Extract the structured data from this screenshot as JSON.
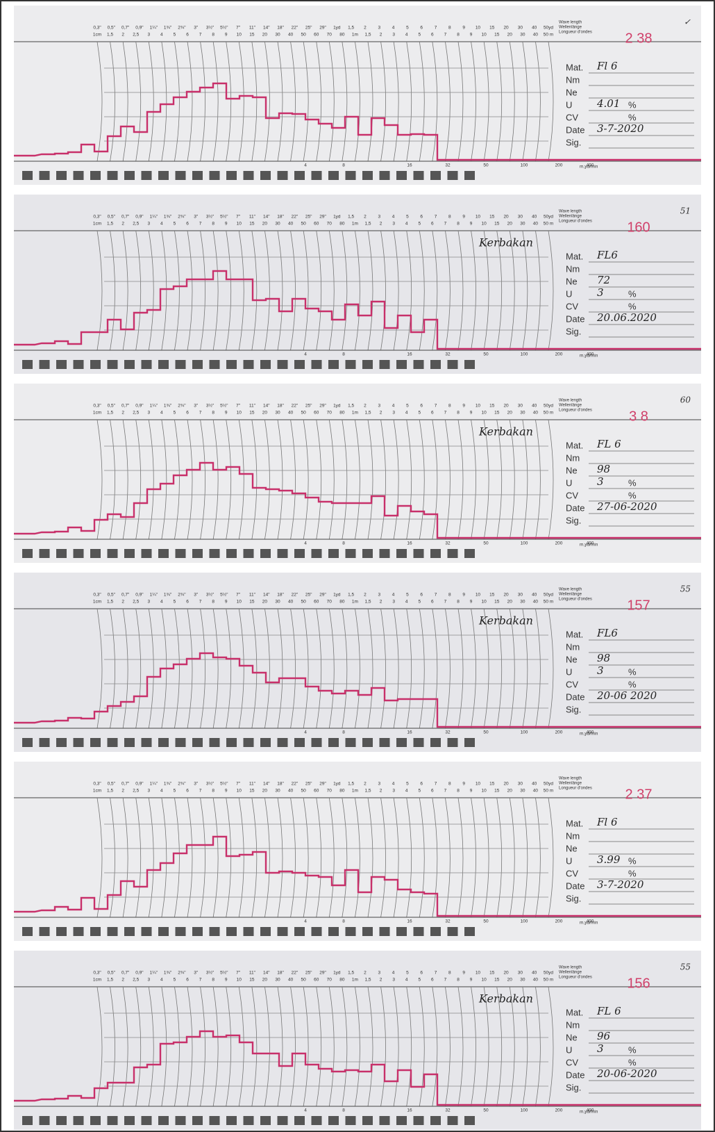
{
  "scale": {
    "row1": [
      "0,3\"",
      "0,5\"",
      "0,7\"",
      "0,9\"",
      "1¼\"",
      "1¾\"",
      "2¾\"",
      "3\"",
      "3½\"",
      "5½\"",
      "7\"",
      "11\"",
      "14\"",
      "18\"",
      "22\"",
      "25\"",
      "29\"",
      "1yd",
      "1,5",
      "2",
      "3",
      "4",
      "5",
      "6",
      "7",
      "8",
      "9",
      "10",
      "15",
      "20",
      "30",
      "40",
      "50yd"
    ],
    "row2": [
      "1cm",
      "1,5",
      "2",
      "2,5",
      "3",
      "4",
      "5",
      "6",
      "7",
      "8",
      "9",
      "10",
      "15",
      "20",
      "30",
      "40",
      "50",
      "60",
      "70",
      "80",
      "1m",
      "1,5",
      "2",
      "3",
      "4",
      "5",
      "6",
      "7",
      "8",
      "9",
      "10",
      "15",
      "20",
      "30",
      "40",
      "50 m"
    ]
  },
  "legend": [
    "Wave length",
    "Wellenlänge",
    "Longueur d'ondes"
  ],
  "form_labels": [
    "Mat.",
    "Nm",
    "Ne",
    "U",
    "CV",
    "Date",
    "Sig."
  ],
  "percent": "%",
  "speed_marks": [
    "4",
    "8",
    "16",
    "32",
    "50",
    "100",
    "200",
    "400"
  ],
  "speed_unit": "m,yd/min",
  "strips": [
    {
      "number": "2 38",
      "corner": "✓",
      "mat": "Fl 6",
      "u": "4.01",
      "date": "3-7-2020"
    },
    {
      "number": "160",
      "corner": "51",
      "note": "Kerbakan",
      "mat": "FL6",
      "ne": "72",
      "u": "3",
      "date": "20.06.2020"
    },
    {
      "number": "3 8",
      "corner": "60",
      "note": "Kerbakan",
      "mat": "FL 6",
      "ne": "98",
      "u": "3",
      "date": "27-06-2020"
    },
    {
      "number": "157",
      "corner": "55",
      "note": "Kerbakan",
      "mat": "FL6",
      "ne": "98",
      "u": "3",
      "date": "20-06 2020"
    },
    {
      "number": "2 37",
      "mat": "Fl 6",
      "u": "3.99",
      "date": "3-7-2020"
    },
    {
      "number": "156",
      "corner": "55",
      "note": "Kerbakan",
      "mat": "FL 6",
      "ne": "96",
      "u": "3",
      "date": "20-06-2020"
    }
  ]
}
